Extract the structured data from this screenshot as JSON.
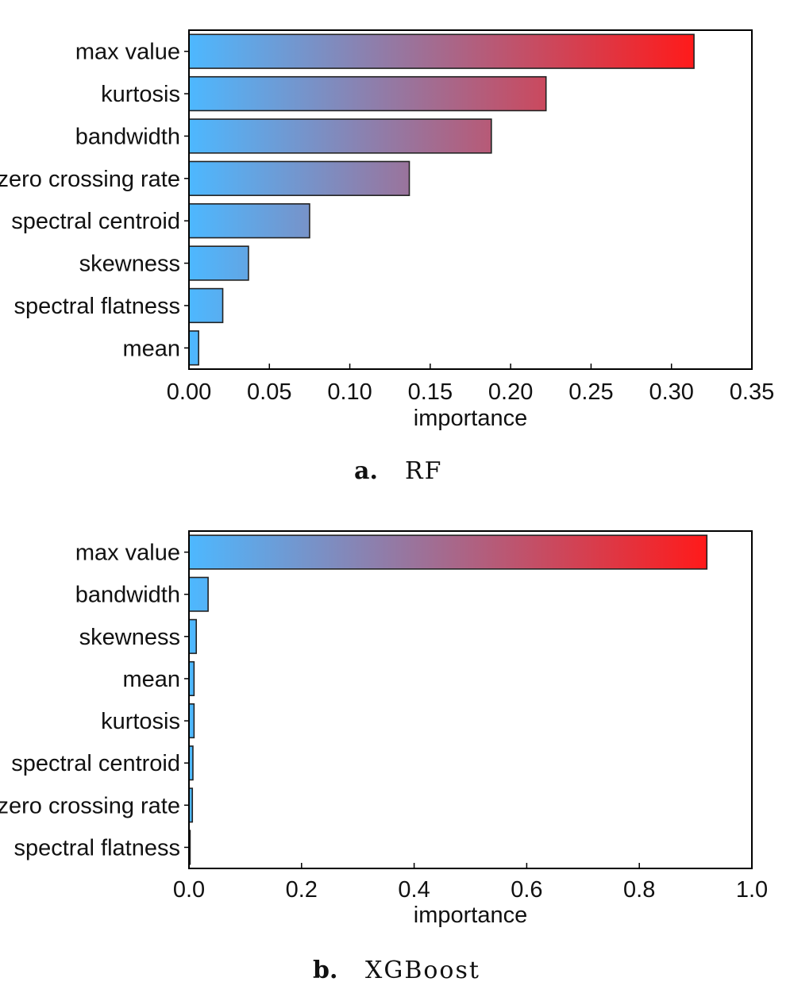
{
  "colors": {
    "bar_low": "#4db8ff",
    "bar_high": "#ff1a1a",
    "bar_edge": "#222222",
    "axis": "#000000"
  },
  "chart_data": [
    {
      "type": "bar",
      "orientation": "horizontal",
      "categories": [
        "max value",
        "kurtosis",
        "bandwidth",
        "zero crossing rate",
        "spectral centroid",
        "skewness",
        "spectral flatness",
        "mean"
      ],
      "values": [
        0.314,
        0.222,
        0.188,
        0.137,
        0.075,
        0.037,
        0.021,
        0.006
      ],
      "xlabel": "importance",
      "xlim": [
        0,
        0.35
      ],
      "xticks": [
        "0.00",
        "0.05",
        "0.10",
        "0.15",
        "0.20",
        "0.25",
        "0.30",
        "0.35"
      ],
      "color_scale": "gradient from blue to red along importance",
      "grid": false,
      "caption_letter": "a.",
      "caption_text": "RF"
    },
    {
      "type": "bar",
      "orientation": "horizontal",
      "categories": [
        "max value",
        "bandwidth",
        "skewness",
        "mean",
        "kurtosis",
        "spectral centroid",
        "zero crossing rate",
        "spectral flatness"
      ],
      "values": [
        0.92,
        0.034,
        0.013,
        0.009,
        0.009,
        0.007,
        0.006,
        0.002
      ],
      "xlabel": "importance",
      "xlim": [
        0,
        1.0
      ],
      "xticks": [
        "0.0",
        "0.2",
        "0.4",
        "0.6",
        "0.8",
        "1.0"
      ],
      "color_scale": "gradient from blue to red along importance",
      "grid": false,
      "caption_letter": "b.",
      "caption_text": "XGBoost"
    }
  ]
}
